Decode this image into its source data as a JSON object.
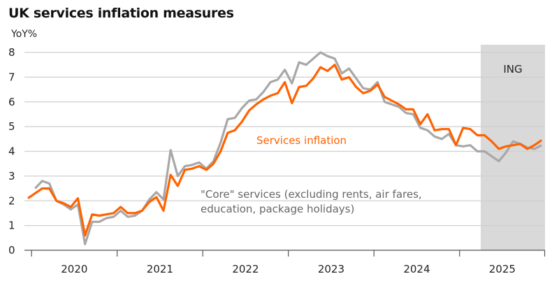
{
  "title": "UK services inflation measures",
  "chart_data": {
    "type": "line",
    "title": "UK services inflation measures",
    "ylabel": "YoY%",
    "xlabel": "",
    "ylim": [
      0,
      8
    ],
    "yticks": [
      "0",
      "1",
      "2",
      "3",
      "4",
      "5",
      "6",
      "7",
      "8"
    ],
    "grid": true,
    "x_start": "2019-12",
    "x_end": "2025-12",
    "frequency": "monthly",
    "xticks": [
      "2020",
      "2021",
      "2022",
      "2023",
      "2024",
      "2025"
    ],
    "forecast_region": {
      "start": "2025-04",
      "end": "2025-12",
      "label": "ING"
    },
    "colors": {
      "services": "#FF6200",
      "core": "#A8A8A8",
      "shade": "#D9D9D9",
      "grid": "#CFCFCF",
      "axis": "#555555"
    },
    "series": [
      {
        "name": "Services inflation",
        "color": "#FF6200",
        "start": "2019-12",
        "values": [
          2.1,
          2.3,
          2.5,
          2.5,
          2.0,
          1.9,
          1.75,
          2.1,
          0.6,
          1.45,
          1.4,
          1.45,
          1.5,
          1.75,
          1.5,
          1.5,
          1.6,
          1.95,
          2.15,
          1.6,
          3.05,
          2.6,
          3.25,
          3.3,
          3.4,
          3.25,
          3.5,
          4.0,
          4.75,
          4.85,
          5.2,
          5.65,
          5.9,
          6.1,
          6.25,
          6.35,
          6.8,
          5.95,
          6.6,
          6.65,
          6.95,
          7.4,
          7.25,
          7.5,
          6.9,
          7.0,
          6.6,
          6.35,
          6.45,
          6.7,
          6.2,
          6.05,
          5.9,
          5.7,
          5.7,
          5.1,
          5.5,
          4.85,
          4.9,
          4.9,
          4.25,
          4.95,
          4.9,
          4.65,
          4.65,
          4.4,
          4.1,
          4.2,
          4.25,
          4.3,
          4.1,
          4.25,
          4.45
        ]
      },
      {
        "name": "\"Core\" services (excluding rents, air fares, education, package holidays)",
        "color": "#A8A8A8",
        "start": "2020-01",
        "values": [
          2.5,
          2.8,
          2.7,
          2.0,
          1.85,
          1.65,
          1.85,
          0.25,
          1.15,
          1.15,
          1.3,
          1.35,
          1.6,
          1.35,
          1.4,
          1.6,
          2.05,
          2.35,
          2.05,
          4.05,
          3.0,
          3.4,
          3.45,
          3.55,
          3.3,
          3.6,
          4.35,
          5.3,
          5.35,
          5.75,
          6.05,
          6.1,
          6.4,
          6.8,
          6.9,
          7.3,
          6.75,
          7.6,
          7.5,
          7.75,
          8.0,
          7.85,
          7.75,
          7.15,
          7.35,
          6.95,
          6.55,
          6.5,
          6.8,
          6.0,
          5.9,
          5.8,
          5.55,
          5.5,
          4.95,
          4.85,
          4.6,
          4.5,
          4.7,
          4.25,
          4.2,
          4.25,
          4.0,
          4.0,
          3.8,
          3.6,
          3.95,
          4.4,
          4.3,
          4.15,
          4.1,
          4.25
        ]
      }
    ],
    "annotations": [
      {
        "text": "Services inflation",
        "series": "Services inflation",
        "color": "#FF6200"
      },
      {
        "text": "\"Core\" services (excluding rents, air fares,",
        "color": "#666666"
      },
      {
        "text": "education, package holidays)",
        "color": "#666666"
      }
    ]
  }
}
